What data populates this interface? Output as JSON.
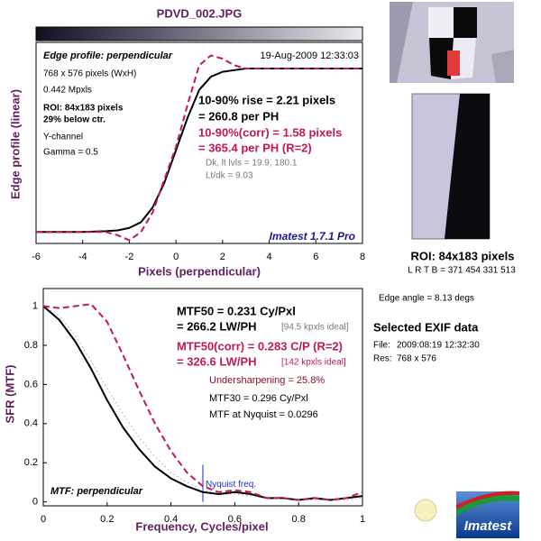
{
  "window_title": "PDVD_002.JPG",
  "chart_data": [
    {
      "type": "line",
      "title": "Edge profile: perpendicular",
      "date": "19-Aug-2009 12:33:03",
      "xlabel": "Pixels (perpendicular)",
      "ylabel": "Edge profile (linear)",
      "xlim": [
        -6,
        8
      ],
      "xticks": [
        -6,
        -4,
        -2,
        0,
        2,
        4,
        6,
        8
      ],
      "ylim": [
        -0.07,
        1.16
      ],
      "x": [
        -6,
        -5,
        -4,
        -3,
        -2.5,
        -2,
        -1.5,
        -1,
        -0.5,
        0,
        0.5,
        1,
        1.5,
        2,
        2.5,
        3,
        4,
        5,
        6,
        7,
        8
      ],
      "series": [
        {
          "color": "#000000",
          "style": "solid",
          "values": [
            0,
            0,
            0,
            0.005,
            0.01,
            0.025,
            0.06,
            0.15,
            0.3,
            0.5,
            0.7,
            0.87,
            0.95,
            0.98,
            0.99,
            1,
            1,
            1,
            1,
            1,
            1
          ]
        },
        {
          "color": "#c0185a",
          "style": "dashed",
          "values": [
            0,
            0,
            0,
            0,
            -0.02,
            -0.05,
            0,
            0.12,
            0.32,
            0.52,
            0.78,
            1.02,
            1.08,
            1.06,
            1.02,
            1,
            1,
            1,
            1,
            1,
            1
          ]
        }
      ],
      "info": [
        "768 x 576 pixels (WxH)",
        "0.442 Mpxls",
        "ROI: 84x183 pixels",
        "29% below ctr.",
        "Y-channel",
        "Gamma = 0.5"
      ],
      "rise": [
        "10-90% rise = 2.21 pixels",
        "= 260.8 per PH"
      ],
      "rise_corr": [
        "10-90%(corr) = 1.58 pixels",
        "= 365.4 per PH  (R=2)"
      ],
      "levels": [
        "Dk, lt lvls = 19.9, 180.1",
        "Lt/dk = 9.03"
      ],
      "version": "Imatest 1.7.1 Pro"
    },
    {
      "type": "line",
      "title": "MTF: perpendicular",
      "xlabel": "Frequency, Cycles/pixel",
      "ylabel": "SFR (MTF)",
      "xlim": [
        0,
        1
      ],
      "xticks": [
        0,
        0.2,
        0.4,
        0.6,
        0.8,
        1
      ],
      "ylim": [
        -0.02,
        1.09
      ],
      "yticks": [
        0,
        0.2,
        0.4,
        0.6,
        0.8,
        1
      ],
      "x": [
        0,
        0.05,
        0.1,
        0.15,
        0.2,
        0.25,
        0.3,
        0.35,
        0.4,
        0.45,
        0.5,
        0.55,
        0.6,
        0.65,
        0.7,
        0.75,
        0.8,
        0.85,
        0.9,
        0.95,
        1
      ],
      "series": [
        {
          "color": "#aaaaaa",
          "style": "dotted",
          "values": [
            1,
            0.95,
            0.85,
            0.72,
            0.58,
            0.45,
            0.33,
            0.23,
            0.15,
            0.1,
            0.06,
            0.04,
            0.04,
            0.03,
            0.02,
            0.02,
            0.01,
            0.01,
            0.01,
            0.01,
            0.02
          ]
        },
        {
          "color": "#000000",
          "style": "solid",
          "values": [
            1,
            0.93,
            0.82,
            0.68,
            0.52,
            0.38,
            0.27,
            0.18,
            0.12,
            0.08,
            0.05,
            0.04,
            0.05,
            0.04,
            0.02,
            0.02,
            0.01,
            0.02,
            0.01,
            0.02,
            0.03
          ]
        },
        {
          "color": "#c0185a",
          "style": "dashed",
          "values": [
            1,
            0.99,
            1.0,
            1.01,
            0.92,
            0.75,
            0.57,
            0.4,
            0.26,
            0.15,
            0.08,
            0.05,
            0.06,
            0.05,
            0.02,
            0.02,
            0.01,
            0.02,
            0.01,
            0.02,
            0.05
          ]
        }
      ],
      "nyquist": {
        "x": 0.5,
        "height": 0.19,
        "label": "Nyquist freq."
      },
      "mtf50": [
        "MTF50 = 0.231 Cy/Pxl",
        "= 266.2 LW/PH",
        "[94.5 kpxls ideal]"
      ],
      "mtf50_corr": [
        "MTF50(corr) = 0.283 C/P  (R=2)",
        "= 326.6 LW/PH",
        "[142 kpxls ideal]"
      ],
      "undersharpening": "Undersharpening = 25.8%",
      "mtf30": "MTF30 = 0.296 Cy/Pxl",
      "mtf_nyquist": "MTF at Nyquist = 0.0296"
    }
  ],
  "roi_panel": {
    "label": "ROI: 84x183 pixels",
    "lrtb": "L R T B = 371 454 331 513",
    "edge_angle": "Edge angle = 8.13 degs"
  },
  "exif": {
    "title": "Selected EXIF data",
    "file_label": "File:",
    "file": "2009:08:19 12:32:30",
    "res_label": "Res:",
    "res": "768 x 576"
  },
  "logo": "Imatest"
}
